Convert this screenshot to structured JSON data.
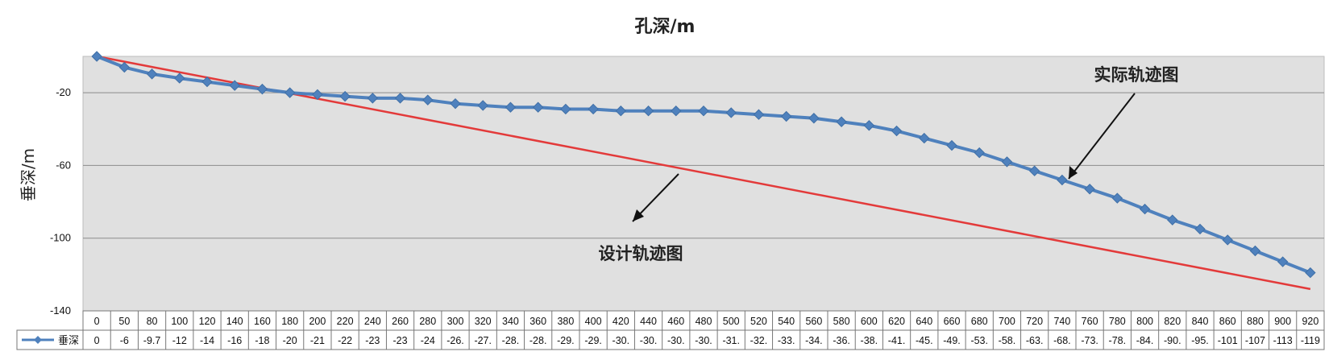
{
  "chart_data": {
    "type": "line",
    "title": "孔深/m",
    "xlabel": "",
    "ylabel": "垂深/m",
    "ylim": [
      -140,
      0
    ],
    "yticks": [
      -20,
      -60,
      -100,
      -140
    ],
    "grid": true,
    "legend": "bottom-left data table",
    "x": [
      0,
      50,
      80,
      100,
      120,
      140,
      160,
      180,
      200,
      220,
      240,
      260,
      280,
      300,
      320,
      340,
      360,
      380,
      400,
      420,
      440,
      460,
      480,
      500,
      520,
      540,
      560,
      580,
      600,
      620,
      640,
      660,
      680,
      700,
      720,
      740,
      760,
      780,
      800,
      820,
      840,
      860,
      880,
      900,
      920
    ],
    "x_labels": [
      "0",
      "50",
      "80",
      "100",
      "120",
      "140",
      "160",
      "180",
      "200",
      "220",
      "240",
      "260",
      "280",
      "300",
      "320",
      "340",
      "360",
      "380",
      "400",
      "420",
      "440",
      "460",
      "480",
      "500",
      "520",
      "540",
      "560",
      "580",
      "600",
      "620",
      "640",
      "660",
      "680",
      "700",
      "720",
      "740",
      "760",
      "780",
      "800",
      "820",
      "840",
      "860",
      "880",
      "900",
      "920"
    ],
    "series": [
      {
        "name": "垂深",
        "color": "#4f81bd",
        "marker": "diamond",
        "values": [
          0,
          -6,
          -9.7,
          -12,
          -14,
          -16,
          -18,
          -20,
          -21,
          -22,
          -23,
          -23,
          -24,
          -26,
          -27,
          -28,
          -28,
          -29,
          -29,
          -30,
          -30,
          -30,
          -30,
          -31,
          -32,
          -33,
          -34,
          -36,
          -38,
          -41,
          -45,
          -49,
          -53,
          -58,
          -63,
          -68,
          -73,
          -78,
          -84,
          -90,
          -95,
          -101,
          -107,
          -113,
          -119
        ],
        "table_labels": [
          "0",
          "-6",
          "-9.7",
          "-12",
          "-14",
          "-16",
          "-18",
          "-20",
          "-21",
          "-22",
          "-23",
          "-23",
          "-24",
          "-26.",
          "-27.",
          "-28.",
          "-28.",
          "-29.",
          "-29.",
          "-30.",
          "-30.",
          "-30.",
          "-30.",
          "-31.",
          "-32.",
          "-33.",
          "-34.",
          "-36.",
          "-38.",
          "-41.",
          "-45.",
          "-49.",
          "-53.",
          "-58.",
          "-63.",
          "-68.",
          "-73.",
          "-78.",
          "-84.",
          "-90.",
          "-95.",
          "-101",
          "-107",
          "-113",
          "-119"
        ]
      }
    ],
    "design_line": {
      "color": "#e33a3a",
      "start": [
        0,
        0
      ],
      "end": [
        920,
        -128
      ]
    },
    "annotations": [
      {
        "text": "实际轨迹图"
      },
      {
        "text": "设计轨迹图"
      }
    ],
    "colors": {
      "plot_background": "#e0e0e0",
      "gridline": "#8c8c8c",
      "table_border": "#777777"
    }
  }
}
